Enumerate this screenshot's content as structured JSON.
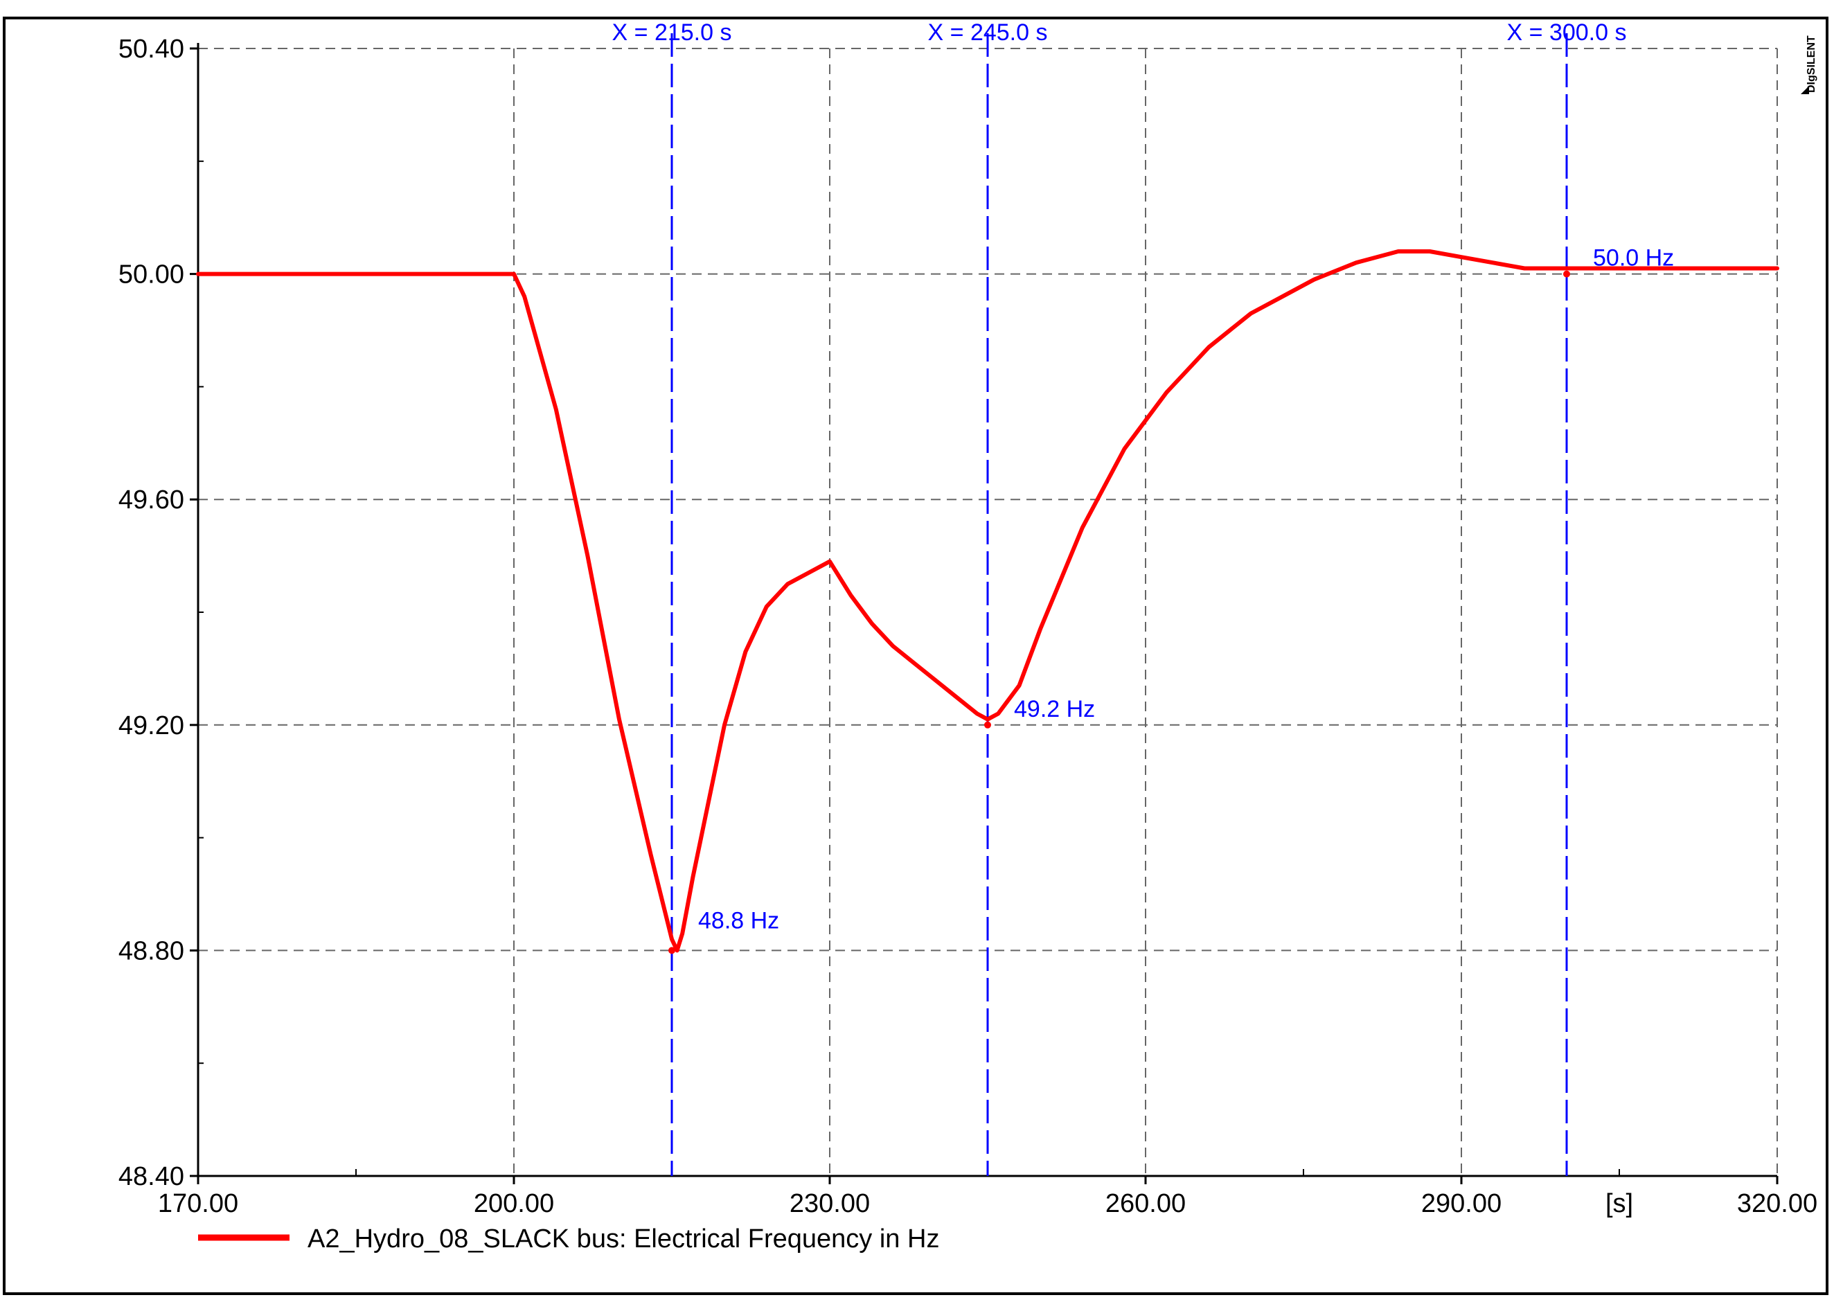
{
  "brand": "DIgSILENT",
  "chart_data": {
    "type": "line",
    "xlabel": "",
    "x_unit_label": "[s]",
    "ylabel": "",
    "xlim": [
      170,
      320
    ],
    "ylim": [
      48.4,
      50.4
    ],
    "x_ticks": [
      170,
      200,
      230,
      260,
      290,
      320
    ],
    "x_tick_labels": [
      "170.00",
      "200.00",
      "230.00",
      "260.00",
      "290.00",
      "320.00"
    ],
    "x_minor_ticks": [
      185,
      215,
      245,
      275,
      305
    ],
    "y_ticks": [
      48.4,
      48.8,
      49.2,
      49.6,
      50.0,
      50.4
    ],
    "y_tick_labels": [
      "48.40",
      "48.80",
      "49.20",
      "49.60",
      "50.00",
      "50.40"
    ],
    "y_minor_ticks": [
      48.6,
      49.0,
      49.4,
      49.8,
      50.2
    ],
    "grid": true,
    "legend_position": "bottom-left",
    "series": [
      {
        "name": "A2_Hydro_08_SLACK bus: Electrical Frequency in Hz",
        "color": "#ff0000",
        "x": [
          170,
          200,
          201,
          204,
          207,
          210,
          213,
          215,
          215.5,
          216,
          216.5,
          217,
          218,
          220,
          222,
          224,
          226,
          228,
          230,
          232,
          234,
          236,
          238,
          240,
          242,
          244,
          245,
          246,
          248,
          250,
          252,
          254,
          256,
          258,
          260,
          262,
          264,
          266,
          268,
          270,
          273,
          276,
          280,
          284,
          287,
          290,
          293,
          296,
          300,
          305,
          310,
          315,
          320
        ],
        "y": [
          50.0,
          50.0,
          49.96,
          49.76,
          49.5,
          49.21,
          48.97,
          48.82,
          48.8,
          48.83,
          48.88,
          48.93,
          49.02,
          49.2,
          49.33,
          49.41,
          49.45,
          49.47,
          49.49,
          49.43,
          49.38,
          49.34,
          49.31,
          49.28,
          49.25,
          49.22,
          49.21,
          49.22,
          49.27,
          49.37,
          49.46,
          49.55,
          49.62,
          49.69,
          49.74,
          49.79,
          49.83,
          49.87,
          49.9,
          49.93,
          49.96,
          49.99,
          50.02,
          50.04,
          50.04,
          50.03,
          50.02,
          50.01,
          50.01,
          50.01,
          50.01,
          50.01,
          50.01
        ]
      }
    ],
    "cursors": [
      {
        "x": 215.0,
        "label": "X =  215.0 s",
        "value_label": "48.8 Hz",
        "value_y": 48.8
      },
      {
        "x": 245.0,
        "label": "X =  245.0 s",
        "value_label": "49.2 Hz",
        "value_y": 49.2
      },
      {
        "x": 300.0,
        "label": "X =  300.0 s",
        "value_label": "50.0 Hz",
        "value_y": 50.0
      }
    ],
    "cursor_color": "#0000ff"
  }
}
